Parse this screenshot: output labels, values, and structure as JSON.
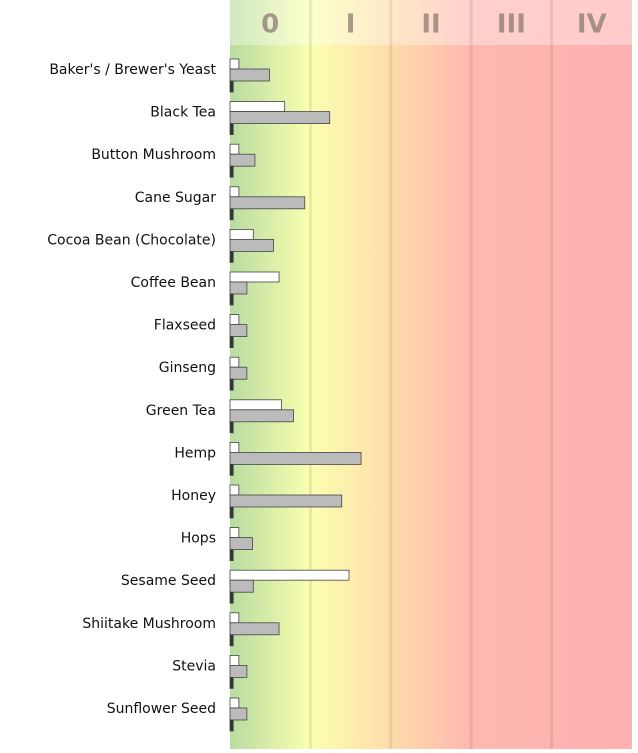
{
  "chart_data": {
    "type": "bar",
    "orientation": "horizontal",
    "bands": [
      "0",
      "I",
      "II",
      "III",
      "IV"
    ],
    "categories": [
      "Baker's / Brewer's Yeast",
      "Black Tea",
      "Button Mushroom",
      "Cane Sugar",
      "Cocoa Bean (Chocolate)",
      "Coffee Bean",
      "Flaxseed",
      "Ginseng",
      "Green Tea",
      "Hemp",
      "Honey",
      "Hops",
      "Sesame Seed",
      "Shiitake Mushroom",
      "Stevia",
      "Sunflower Seed"
    ],
    "series": [
      {
        "color": "#ffffff",
        "values": [
          0.11,
          0.68,
          0.11,
          0.11,
          0.29,
          0.61,
          0.11,
          0.11,
          0.64,
          0.11,
          0.11,
          0.11,
          1.48,
          0.11,
          0.11,
          0.11
        ]
      },
      {
        "color": "#bbbbbb",
        "values": [
          0.49,
          1.24,
          0.31,
          0.93,
          0.54,
          0.21,
          0.21,
          0.21,
          0.79,
          1.63,
          1.39,
          0.28,
          0.29,
          0.61,
          0.21,
          0.21
        ]
      },
      {
        "color": "#333333",
        "values": [
          0.04,
          0.04,
          0.04,
          0.04,
          0.04,
          0.04,
          0.04,
          0.04,
          0.04,
          0.04,
          0.04,
          0.04,
          0.04,
          0.04,
          0.04,
          0.04
        ]
      }
    ],
    "xlim": [
      0,
      5
    ],
    "xticks": [
      1,
      2,
      3,
      4
    ],
    "grid": true
  }
}
